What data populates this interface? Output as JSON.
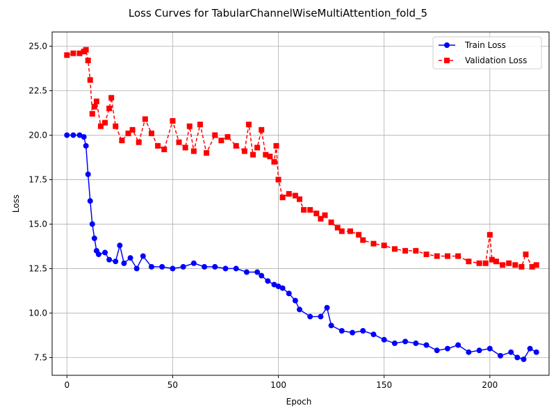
{
  "chart_data": {
    "type": "line",
    "title": "Loss Curves for TabularChannelWiseMultiAttention_fold_5",
    "xlabel": "Epoch",
    "ylabel": "Loss",
    "xlim": [
      -7,
      228
    ],
    "ylim": [
      6.5,
      25.8
    ],
    "xticks": [
      0,
      50,
      100,
      150,
      200
    ],
    "yticks": [
      7.5,
      10.0,
      12.5,
      15.0,
      17.5,
      20.0,
      22.5,
      25.0
    ],
    "xtick_labels": [
      "0",
      "50",
      "100",
      "150",
      "200"
    ],
    "ytick_labels": [
      "7.5",
      "10.0",
      "12.5",
      "15.0",
      "17.5",
      "20.0",
      "22.5",
      "25.0"
    ],
    "grid": true,
    "legend_position": "top-right",
    "series": [
      {
        "name": "Train Loss",
        "color": "#0000ff",
        "marker": "circle",
        "line": "solid",
        "x": [
          0,
          3,
          6,
          8,
          9,
          10,
          11,
          12,
          13,
          14,
          15,
          18,
          20,
          23,
          25,
          27,
          30,
          33,
          36,
          40,
          45,
          50,
          55,
          60,
          65,
          70,
          75,
          80,
          85,
          90,
          92,
          95,
          98,
          100,
          102,
          105,
          108,
          110,
          115,
          120,
          123,
          125,
          130,
          135,
          140,
          145,
          150,
          155,
          160,
          165,
          170,
          175,
          180,
          185,
          190,
          195,
          200,
          205,
          210,
          213,
          216,
          219,
          222
        ],
        "y": [
          20.0,
          20.0,
          20.0,
          19.9,
          19.4,
          17.8,
          16.3,
          15.0,
          14.2,
          13.5,
          13.3,
          13.4,
          13.0,
          12.9,
          13.8,
          12.8,
          13.1,
          12.5,
          13.2,
          12.6,
          12.6,
          12.5,
          12.6,
          12.8,
          12.6,
          12.6,
          12.5,
          12.5,
          12.3,
          12.3,
          12.1,
          11.8,
          11.6,
          11.5,
          11.4,
          11.1,
          10.7,
          10.2,
          9.8,
          9.8,
          10.3,
          9.3,
          9.0,
          8.9,
          9.0,
          8.8,
          8.5,
          8.3,
          8.4,
          8.3,
          8.2,
          7.9,
          8.0,
          8.2,
          7.8,
          7.9,
          8.0,
          7.6,
          7.8,
          7.5,
          7.4,
          8.0,
          7.8
        ]
      },
      {
        "name": "Validation Loss",
        "color": "#ff0000",
        "marker": "square",
        "line": "dashed",
        "x": [
          0,
          3,
          6,
          8,
          9,
          10,
          11,
          12,
          13,
          14,
          16,
          18,
          20,
          21,
          23,
          26,
          29,
          31,
          34,
          37,
          40,
          43,
          46,
          50,
          53,
          56,
          58,
          60,
          63,
          66,
          70,
          73,
          76,
          80,
          84,
          86,
          88,
          90,
          92,
          94,
          96,
          98,
          99,
          100,
          102,
          105,
          108,
          110,
          112,
          115,
          118,
          120,
          122,
          125,
          128,
          130,
          134,
          138,
          140,
          145,
          150,
          155,
          160,
          165,
          170,
          175,
          180,
          185,
          190,
          195,
          198,
          200,
          201,
          203,
          206,
          209,
          212,
          215,
          217,
          220,
          222
        ],
        "y": [
          24.5,
          24.6,
          24.6,
          24.7,
          24.8,
          24.2,
          23.1,
          21.2,
          21.6,
          21.9,
          20.5,
          20.7,
          21.5,
          22.1,
          20.5,
          19.7,
          20.1,
          20.3,
          19.6,
          20.9,
          20.1,
          19.4,
          19.2,
          20.8,
          19.6,
          19.3,
          20.5,
          19.1,
          20.6,
          19.0,
          20.0,
          19.7,
          19.9,
          19.4,
          19.1,
          20.6,
          18.9,
          19.3,
          20.3,
          18.9,
          18.8,
          18.5,
          19.4,
          17.5,
          16.5,
          16.7,
          16.6,
          16.4,
          15.8,
          15.8,
          15.6,
          15.3,
          15.5,
          15.1,
          14.8,
          14.6,
          14.6,
          14.4,
          14.1,
          13.9,
          13.8,
          13.6,
          13.5,
          13.5,
          13.3,
          13.2,
          13.2,
          13.2,
          12.9,
          12.8,
          12.8,
          14.4,
          13.0,
          12.9,
          12.7,
          12.8,
          12.7,
          12.6,
          13.3,
          12.6,
          12.7
        ]
      }
    ]
  }
}
